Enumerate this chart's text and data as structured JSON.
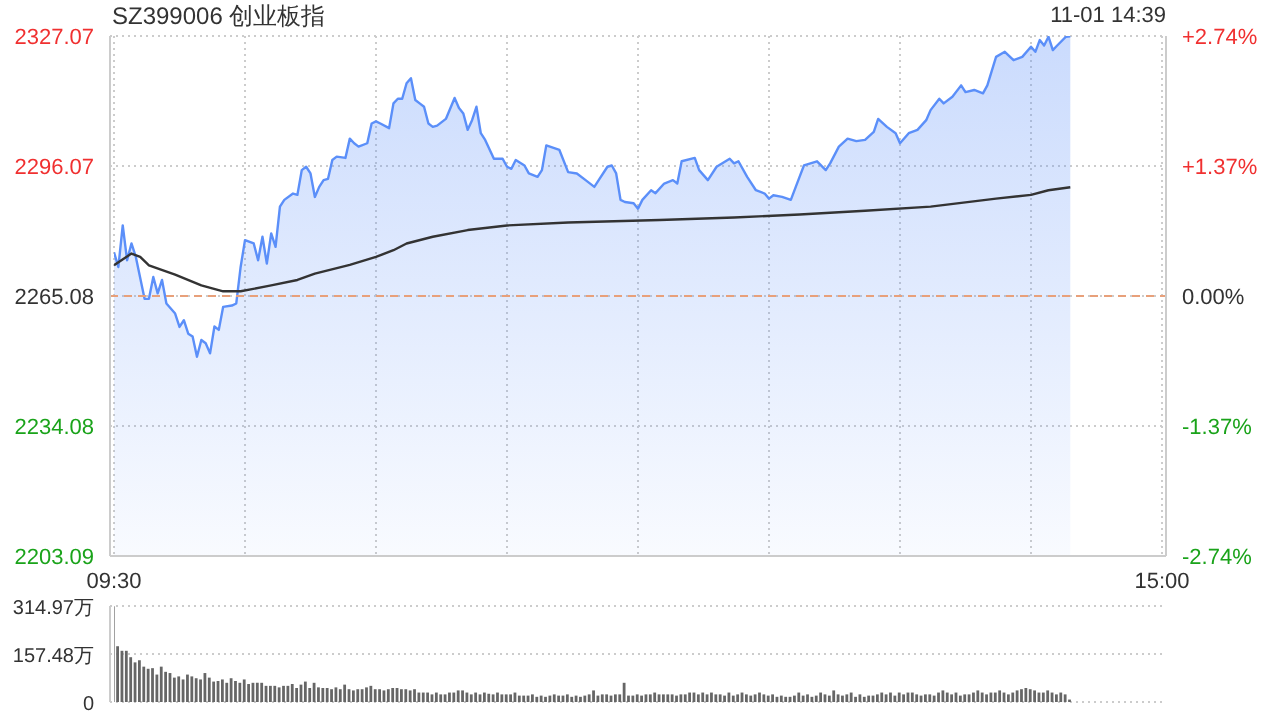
{
  "chart_data": [
    {
      "type": "area",
      "title": "SZ399006 创业板指",
      "annotations": [
        "11-01 14:39"
      ],
      "categories": [
        "09:30",
        null,
        null,
        null,
        null,
        null,
        null,
        null,
        null,
        null,
        null,
        null,
        null,
        null,
        null,
        null,
        null,
        null,
        null,
        null,
        null,
        null,
        null,
        null,
        null,
        null,
        null,
        null,
        null,
        null,
        null,
        null,
        null,
        null,
        null,
        null,
        null,
        null,
        null,
        null,
        null,
        null,
        null,
        null,
        null,
        null,
        null,
        null,
        null,
        null,
        null,
        null,
        null,
        null,
        null,
        null,
        null,
        null,
        null,
        null,
        null,
        null,
        null,
        null,
        null,
        null,
        null,
        null,
        null,
        null,
        null,
        null,
        null,
        null,
        null,
        null,
        null,
        null,
        null,
        null,
        null,
        null,
        null,
        null,
        null,
        null,
        null,
        null,
        null,
        null,
        null,
        null,
        null,
        null,
        null,
        null,
        null,
        null,
        null,
        null,
        null,
        null,
        null,
        null,
        null,
        null,
        null,
        null,
        null,
        null,
        null,
        null,
        null,
        null,
        null,
        null,
        null,
        null,
        null,
        null,
        null,
        null,
        null,
        null,
        null,
        null,
        null,
        null,
        null,
        null,
        null,
        null,
        null,
        null,
        null,
        null,
        null,
        null,
        null,
        null,
        null,
        null,
        null,
        null,
        null,
        null,
        null,
        null,
        null,
        null,
        null,
        null,
        null,
        null,
        null,
        null,
        null,
        null,
        null,
        null,
        null,
        null,
        null,
        null,
        null,
        null,
        null,
        null,
        null,
        null,
        null,
        null,
        null,
        null,
        null,
        null,
        null,
        null,
        null,
        null,
        null,
        null,
        null,
        null,
        null,
        null,
        null,
        null,
        null,
        null,
        null,
        null,
        null,
        null,
        null,
        null,
        null,
        null,
        null,
        null,
        null,
        null,
        null,
        null,
        null,
        null,
        null,
        null,
        null,
        null,
        null,
        null,
        null,
        null,
        null,
        null,
        null,
        null,
        null,
        null,
        null,
        null,
        null,
        null,
        null,
        null,
        null,
        null,
        null,
        null,
        null,
        null,
        null,
        null,
        null,
        null,
        null,
        null,
        null,
        null,
        "15:00"
      ],
      "ylim": [
        2203.09,
        2327.07
      ],
      "yticks": [
        2203.09,
        2234.08,
        2265.08,
        2296.07,
        2327.07
      ],
      "y2lim": [
        -2.74,
        2.74
      ],
      "y2ticks": [
        {
          "value": -2.74,
          "label": "-2.74%"
        },
        {
          "value": -1.37,
          "label": "-1.37%"
        },
        {
          "value": 0,
          "label": "0.00%"
        },
        {
          "value": 1.37,
          "label": "+1.37%"
        },
        {
          "value": 2.74,
          "label": "+2.74%"
        }
      ],
      "grid": true,
      "marker": "none",
      "ref_lines": [
        {
          "axis": "y",
          "value": 2265.08,
          "color": "#e8a07a",
          "line_style": "dashed"
        }
      ],
      "series": [
        {
          "color": "#5b8ff9",
          "values": [
            2275.5,
            2272.0,
            2281.9,
            2273.6,
            2277.6,
            2274.4,
            null,
            2264.4,
            2264.4,
            2269.6,
            2265.7,
            2268.9,
            2263.3,
            null,
            2260.9,
            2257.7,
            2259.3,
            2256.1,
            2255.4,
            2250.6,
            2254.6,
            2253.8,
            2251.4,
            2257.8,
            2257.0,
            2262.5,
            null,
            2262.8,
            2263.3,
            2272.0,
            2278.4,
            null,
            2277.6,
            2273.6,
            2279.2,
            2272.8,
            2280.0,
            2276.8,
            2286.4,
            2288.0,
            null,
            2289.5,
            2289.2,
            2295.1,
            2295.9,
            2294.3,
            2288.7,
            2291.1,
            2292.7,
            2293.0,
            2297.5,
            2298.3,
            null,
            2298.0,
            2302.6,
            2301.5,
            2300.7,
            null,
            2301.5,
            2306.2,
            2306.7,
            2306.2,
            null,
            2305.1,
            2311.0,
            2312.1,
            2312.1,
            2315.8,
            2317.0,
            2311.8,
            2311.0,
            2310.2,
            2306.2,
            2305.4,
            2305.7,
            null,
            2307.3,
            null,
            2312.3,
            2309.9,
            2308.6,
            2304.7,
            2307.0,
            2310.2,
            2303.9,
            2302.3,
            null,
            2297.8,
            null,
            2297.8,
            2295.9,
            2295.4,
            2297.5,
            null,
            2296.2,
            2294.3,
            null,
            2293.5,
            2295.1,
            2301.0,
            null,
            null,
            2299.9,
            null,
            2294.6,
            null,
            2294.3,
            null,
            2292.7,
            null,
            2291.1,
            2292.7,
            null,
            2295.9,
            2296.2,
            2294.3,
            2288.0,
            2287.5,
            null,
            2287.2,
            2285.9,
            2288.0,
            null,
            2290.3,
            2289.6,
            null,
            2291.9,
            null,
            2292.7,
            2291.9,
            2297.2,
            null,
            null,
            2298.0,
            2295.1,
            null,
            2292.7,
            null,
            2295.9,
            null,
            null,
            2297.8,
            2296.7,
            2297.2,
            null,
            2293.5,
            null,
            2290.3,
            null,
            2289.5,
            2288.3,
            2289.1,
            null,
            2288.7,
            null,
            2288.0,
            null,
            2293.5,
            2296.2,
            null,
            null,
            2297.2,
            null,
            2295.1,
            2296.7,
            null,
            2300.7,
            null,
            2302.6,
            null,
            2302.0,
            null,
            2302.3,
            null,
            2304.2,
            2307.3,
            null,
            2305.4,
            null,
            2303.9,
            2301.5,
            null,
            2303.9,
            null,
            2304.7,
            null,
            2307.0,
            2309.4,
            null,
            2312.1,
            2311.0,
            null,
            2312.6,
            null,
            2315.3,
            2313.7,
            null,
            2314.2,
            null,
            2313.4,
            2315.3,
            null,
            2322.1,
            null,
            2323.3,
            null,
            2321.3,
            null,
            2322.1,
            null,
            2324.5,
            2323.3,
            2326.1,
            2324.8,
            2326.9,
            2323.7,
            2324.8,
            null,
            2326.9,
            2327.0,
            null,
            null,
            null,
            null,
            null,
            null,
            null,
            null,
            null,
            null,
            null,
            null,
            null,
            null,
            null,
            null,
            null,
            null,
            null,
            null,
            null
          ]
        },
        {
          "type": "line",
          "color": "#333333",
          "values": [
            2272.4,
            null,
            null,
            null,
            2275.2,
            null,
            2274.4,
            null,
            2272.4,
            null,
            null,
            null,
            null,
            null,
            2270.2,
            null,
            null,
            null,
            null,
            null,
            2267.6,
            null,
            null,
            null,
            null,
            2266.2,
            null,
            null,
            null,
            2266.2,
            null,
            null,
            null,
            null,
            null,
            null,
            2267.6,
            null,
            null,
            null,
            null,
            null,
            2268.9,
            null,
            null,
            null,
            2270.4,
            null,
            null,
            null,
            null,
            null,
            null,
            null,
            2272.5,
            null,
            null,
            null,
            null,
            null,
            2274.4,
            null,
            null,
            null,
            2276.0,
            null,
            null,
            2277.6,
            null,
            null,
            null,
            null,
            null,
            2279.2,
            null,
            null,
            null,
            null,
            null,
            null,
            null,
            2280.8,
            null,
            null,
            null,
            null,
            null,
            null,
            null,
            null,
            2281.9,
            null,
            null,
            null,
            null,
            null,
            null,
            null,
            null,
            null,
            null,
            null,
            null,
            null,
            2282.6,
            null,
            null,
            null,
            null,
            null,
            null,
            null,
            null,
            null,
            null,
            null,
            null,
            null,
            null,
            null,
            null,
            null,
            null,
            null,
            null,
            2283.2,
            null,
            null,
            null,
            null,
            null,
            null,
            null,
            null,
            null,
            null,
            null,
            null,
            null,
            null,
            null,
            null,
            2283.8,
            null,
            null,
            null,
            null,
            null,
            null,
            null,
            null,
            null,
            null,
            null,
            null,
            null,
            null,
            2284.5,
            null,
            null,
            null,
            null,
            null,
            null,
            null,
            null,
            null,
            null,
            null,
            null,
            null,
            null,
            2285.4,
            null,
            null,
            null,
            null,
            null,
            null,
            null,
            null,
            null,
            null,
            null,
            null,
            null,
            null,
            2286.4,
            null,
            null,
            null,
            null,
            null,
            null,
            null,
            null,
            null,
            null,
            null,
            null,
            null,
            null,
            2288.3,
            null,
            null,
            null,
            null,
            null,
            null,
            null,
            2289.2,
            null,
            null,
            null,
            2290.3,
            null,
            null,
            null,
            null,
            2291.0,
            null,
            null,
            null,
            null,
            null,
            null,
            null,
            null,
            null,
            null,
            null,
            null,
            null,
            null,
            null,
            null,
            null,
            null,
            null,
            null,
            null
          ]
        }
      ]
    },
    {
      "type": "bar",
      "categories": [
        null,
        null,
        null,
        null,
        null,
        null,
        null,
        null,
        null,
        null,
        null,
        null,
        null,
        null,
        null,
        null,
        null,
        null,
        null,
        null,
        null,
        null,
        null,
        null,
        null,
        null,
        null,
        null,
        null,
        null,
        null,
        null,
        null,
        null,
        null,
        null,
        null,
        null,
        null,
        null,
        null,
        null,
        null,
        null,
        null,
        null,
        null,
        null,
        null,
        null,
        null,
        null,
        null,
        null,
        null,
        null,
        null,
        null,
        null,
        null,
        null,
        null,
        null,
        null,
        null,
        null,
        null,
        null,
        null,
        null,
        null,
        null,
        null,
        null,
        null,
        null,
        null,
        null,
        null,
        null,
        null,
        null,
        null,
        null,
        null,
        null,
        null,
        null,
        null,
        null,
        null,
        null,
        null,
        null,
        null,
        null,
        null,
        null,
        null,
        null,
        null,
        null,
        null,
        null,
        null,
        null,
        null,
        null,
        null,
        null,
        null,
        null,
        null,
        null,
        null,
        null,
        null,
        null,
        null,
        null,
        null,
        null,
        null,
        null,
        null,
        null,
        null,
        null,
        null,
        null,
        null,
        null,
        null,
        null,
        null,
        null,
        null,
        null,
        null,
        null,
        null,
        null,
        null,
        null,
        null,
        null,
        null,
        null,
        null,
        null,
        null,
        null,
        null,
        null,
        null,
        null,
        null,
        null,
        null,
        null,
        null,
        null,
        null,
        null,
        null,
        null,
        null,
        null,
        null,
        null,
        null,
        null,
        null,
        null,
        null,
        null,
        null,
        null,
        null,
        null,
        null,
        null,
        null,
        null,
        null,
        null,
        null,
        null,
        null,
        null,
        null,
        null,
        null,
        null,
        null,
        null,
        null,
        null,
        null,
        null,
        null,
        null,
        null,
        null,
        null,
        null,
        null,
        null,
        null,
        null,
        null,
        null,
        null,
        null,
        null,
        null,
        null,
        null,
        null,
        null,
        null,
        null,
        null,
        null,
        null,
        null,
        null,
        null,
        null,
        null,
        null,
        null,
        null,
        null,
        null,
        null,
        null,
        null,
        null,
        null,
        null
      ],
      "ylim": [
        0,
        314.97
      ],
      "yticks": [
        0,
        {
          "value": 157.48,
          "label": "157.48万"
        },
        {
          "value": 314.97,
          "label": "314.97万"
        }
      ],
      "grid": "y",
      "series": [
        {
          "color": "#666666",
          "values": [
            314,
            183,
            168,
            168,
            147,
            130,
            137,
            116,
            109,
            111,
            90,
            116,
            99,
            95,
            80,
            84,
            74,
            90,
            84,
            78,
            74,
            95,
            80,
            67,
            69,
            74,
            63,
            78,
            69,
            63,
            74,
            59,
            63,
            63,
            63,
            53,
            53,
            53,
            48,
            53,
            53,
            59,
            46,
            57,
            67,
            46,
            63,
            48,
            46,
            46,
            42,
            48,
            42,
            57,
            42,
            38,
            42,
            42,
            48,
            53,
            42,
            42,
            38,
            42,
            46,
            46,
            42,
            42,
            38,
            42,
            31,
            31,
            31,
            25,
            31,
            25,
            25,
            31,
            31,
            38,
            38,
            31,
            25,
            31,
            25,
            31,
            27,
            25,
            31,
            25,
            25,
            25,
            31,
            21,
            21,
            21,
            25,
            17,
            21,
            17,
            21,
            25,
            21,
            21,
            25,
            17,
            21,
            17,
            21,
            25,
            38,
            21,
            25,
            25,
            21,
            25,
            25,
            63,
            21,
            21,
            25,
            21,
            25,
            25,
            31,
            25,
            25,
            25,
            25,
            21,
            25,
            25,
            31,
            31,
            25,
            31,
            25,
            31,
            25,
            25,
            21,
            31,
            21,
            25,
            31,
            25,
            21,
            25,
            31,
            25,
            21,
            25,
            17,
            21,
            17,
            17,
            21,
            31,
            21,
            25,
            17,
            21,
            31,
            25,
            21,
            38,
            25,
            21,
            25,
            31,
            17,
            25,
            17,
            21,
            21,
            25,
            31,
            25,
            31,
            21,
            31,
            25,
            31,
            31,
            25,
            21,
            25,
            25,
            21,
            31,
            38,
            31,
            25,
            31,
            21,
            25,
            25,
            31,
            38,
            31,
            25,
            31,
            31,
            38,
            31,
            25,
            31,
            38,
            42,
            46,
            42,
            38,
            31,
            31,
            38,
            31,
            25,
            31,
            25,
            8,
            null,
            null,
            null,
            null,
            null,
            null,
            null,
            null,
            null,
            null,
            null,
            null,
            null,
            null,
            null,
            null,
            null,
            null,
            null,
            null,
            null
          ]
        }
      ]
    }
  ]
}
